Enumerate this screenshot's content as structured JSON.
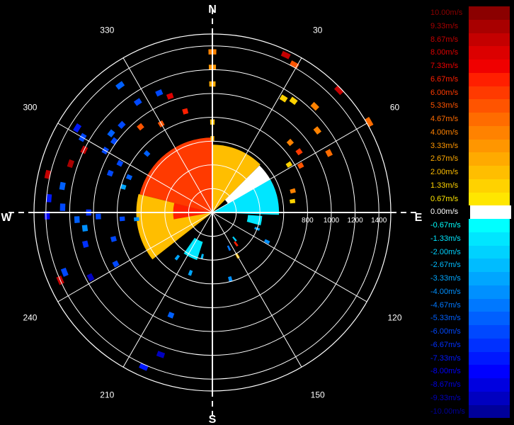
{
  "chart_data": {
    "type": "polar-radar",
    "cardinals": {
      "north": "N",
      "east": "E",
      "south": "S",
      "west": "W"
    },
    "bearings": [
      "30",
      "60",
      "120",
      "150",
      "210",
      "240",
      "300",
      "330"
    ],
    "bearing_values": [
      30,
      60,
      120,
      150,
      210,
      240,
      300,
      330
    ],
    "range_labels": [
      "800",
      "1000",
      "1200",
      "1400"
    ],
    "range_values": [
      800,
      1000,
      1200,
      1400
    ],
    "r_max": 1500,
    "ring_step": 200,
    "spoke_step_deg": 30,
    "colorscale": {
      "labels": [
        "10.00m/s",
        "9.33m/s",
        "8.67m/s",
        "8.00m/s",
        "7.33m/s",
        "6.67m/s",
        "6.00m/s",
        "5.33m/s",
        "4.67m/s",
        "4.00m/s",
        "3.33m/s",
        "2.67m/s",
        "2.00m/s",
        "1.33m/s",
        "0.67m/s",
        "0.00m/s",
        "-0.67m/s",
        "-1.33m/s",
        "-2.00m/s",
        "-2.67m/s",
        "-3.33m/s",
        "-4.00m/s",
        "-4.67m/s",
        "-5.33m/s",
        "-6.00m/s",
        "-6.67m/s",
        "-7.33m/s",
        "-8.00m/s",
        "-8.67m/s",
        "-9.33m/s",
        "-10.00m/s"
      ],
      "colors": [
        "#8b0000",
        "#a80000",
        "#c40000",
        "#dc0000",
        "#f00000",
        "#ff1f00",
        "#ff3a00",
        "#ff5400",
        "#ff6c00",
        "#ff8200",
        "#ff9600",
        "#ffaa00",
        "#ffbe00",
        "#ffd200",
        "#ffe600",
        "#ffffff",
        "#00ffff",
        "#00e6ff",
        "#00d2ff",
        "#00bcff",
        "#00a6ff",
        "#0090ff",
        "#0078ff",
        "#0060ff",
        "#0048ff",
        "#0030ff",
        "#0018ff",
        "#0000ff",
        "#0000e0",
        "#0000c0",
        "#00009a"
      ]
    },
    "sector_fills": [
      {
        "theta_start": 284,
        "theta_end": 360,
        "r_start": 0,
        "r_end": 630,
        "value": 5.8
      },
      {
        "theta_start": 0,
        "theta_end": 45,
        "r_start": 0,
        "r_end": 570,
        "value": 2.3
      },
      {
        "theta_start": 45,
        "theta_end": 80,
        "r_start": 150,
        "r_end": 560,
        "value": 0.2
      },
      {
        "theta_start": 60,
        "theta_end": 92,
        "r_start": 0,
        "r_end": 560,
        "value": -1.6
      },
      {
        "theta_start": 94,
        "theta_end": 105,
        "r_start": 300,
        "r_end": 420,
        "value": -1.6
      },
      {
        "theta_start": 198,
        "theta_end": 215,
        "r_start": 260,
        "r_end": 420,
        "value": -1.6
      },
      {
        "theta_start": 232,
        "theta_end": 284,
        "r_start": 0,
        "r_end": 640,
        "value": 2.0
      },
      {
        "theta_start": 260,
        "theta_end": 284,
        "r_start": 0,
        "r_end": 330,
        "value": 7.0
      }
    ],
    "bins": [
      {
        "theta": 0,
        "r": 1350,
        "value": 4.0
      },
      {
        "theta": 0,
        "r": 1220,
        "value": 3.3
      },
      {
        "theta": 0,
        "r": 1080,
        "value": 2.5
      },
      {
        "theta": 0,
        "r": 760,
        "value": 1.8
      },
      {
        "theta": 0,
        "r": 620,
        "value": 2.3
      },
      {
        "theta": 25,
        "r": 1460,
        "value": 9.0
      },
      {
        "theta": 29,
        "r": 1420,
        "value": 5.5
      },
      {
        "theta": 32,
        "r": 1130,
        "value": 1.5
      },
      {
        "theta": 36,
        "r": 1160,
        "value": 1.5
      },
      {
        "theta": 44,
        "r": 1240,
        "value": 4.0
      },
      {
        "theta": 48,
        "r": 880,
        "value": 4.2
      },
      {
        "theta": 52,
        "r": 1120,
        "value": 4.0
      },
      {
        "theta": 55,
        "r": 890,
        "value": 6.0
      },
      {
        "theta": 58,
        "r": 760,
        "value": 1.5
      },
      {
        "theta": 62,
        "r": 840,
        "value": 5.5
      },
      {
        "theta": 63,
        "r": 1100,
        "value": 4.5
      },
      {
        "theta": 46,
        "r": 1480,
        "value": 9.0
      },
      {
        "theta": 60,
        "r": 1520,
        "value": 4.5
      },
      {
        "theta": 75,
        "r": 700,
        "value": 4.2
      },
      {
        "theta": 82,
        "r": 680,
        "value": 1.5
      },
      {
        "theta": 110,
        "r": 400,
        "value": -3.0
      },
      {
        "theta": 118,
        "r": 520,
        "value": -4.0
      },
      {
        "theta": 140,
        "r": 290,
        "value": -2.0
      },
      {
        "theta": 143,
        "r": 330,
        "value": 7.0
      },
      {
        "theta": 150,
        "r": 420,
        "value": 2.0
      },
      {
        "theta": 155,
        "r": 330,
        "value": -4.5
      },
      {
        "theta": 165,
        "r": 580,
        "value": -4.0
      },
      {
        "theta": 193,
        "r": 380,
        "value": -2.5
      },
      {
        "theta": 200,
        "r": 540,
        "value": -3.5
      },
      {
        "theta": 202,
        "r": 930,
        "value": -5.0
      },
      {
        "theta": 200,
        "r": 1270,
        "value": -9.0
      },
      {
        "theta": 204,
        "r": 1420,
        "value": -7.5
      },
      {
        "theta": 218,
        "r": 480,
        "value": -3.0
      },
      {
        "theta": 242,
        "r": 920,
        "value": -6.0
      },
      {
        "theta": 242,
        "r": 1160,
        "value": -9.0
      },
      {
        "theta": 246,
        "r": 1400,
        "value": 9.0
      },
      {
        "theta": 248,
        "r": 1340,
        "value": -6.0
      },
      {
        "theta": 255,
        "r": 860,
        "value": -6.0
      },
      {
        "theta": 256,
        "r": 1100,
        "value": -6.5
      },
      {
        "theta": 263,
        "r": 1080,
        "value": -4.0
      },
      {
        "theta": 265,
        "r": 640,
        "value": -4.0
      },
      {
        "theta": 266,
        "r": 760,
        "value": -6.0
      },
      {
        "theta": 267,
        "r": 1140,
        "value": -5.5
      },
      {
        "theta": 268,
        "r": 960,
        "value": -6.0
      },
      {
        "theta": 269,
        "r": 1390,
        "value": -8.0
      },
      {
        "theta": 270,
        "r": 1040,
        "value": -6.5
      },
      {
        "theta": 272,
        "r": 1260,
        "value": -6.0
      },
      {
        "theta": 275,
        "r": 1380,
        "value": -7.0
      },
      {
        "theta": 280,
        "r": 1280,
        "value": -5.5
      },
      {
        "theta": 283,
        "r": 1420,
        "value": 9.0
      },
      {
        "theta": 286,
        "r": 780,
        "value": -3.0
      },
      {
        "theta": 289,
        "r": 1260,
        "value": 9.5
      },
      {
        "theta": 291,
        "r": 920,
        "value": -6.0
      },
      {
        "theta": 293,
        "r": 760,
        "value": -5.5
      },
      {
        "theta": 296,
        "r": 1200,
        "value": 9.0
      },
      {
        "theta": 298,
        "r": 880,
        "value": -6.0
      },
      {
        "theta": 300,
        "r": 1040,
        "value": -6.0
      },
      {
        "theta": 300,
        "r": 1260,
        "value": -6.0
      },
      {
        "theta": 302,
        "r": 1340,
        "value": -7.5
      },
      {
        "theta": 306,
        "r": 1020,
        "value": -6.0
      },
      {
        "theta": 308,
        "r": 1080,
        "value": -5.5
      },
      {
        "theta": 312,
        "r": 740,
        "value": -5.0
      },
      {
        "theta": 314,
        "r": 1060,
        "value": -6.0
      },
      {
        "theta": 320,
        "r": 940,
        "value": 5.5
      },
      {
        "theta": 324,
        "r": 1320,
        "value": -5.0
      },
      {
        "theta": 326,
        "r": 1120,
        "value": -6.0
      },
      {
        "theta": 330,
        "r": 860,
        "value": 5.5
      },
      {
        "theta": 336,
        "r": 1100,
        "value": -6.0
      },
      {
        "theta": 340,
        "r": 1040,
        "value": 8.0
      },
      {
        "theta": 345,
        "r": 880,
        "value": 7.0
      }
    ]
  }
}
